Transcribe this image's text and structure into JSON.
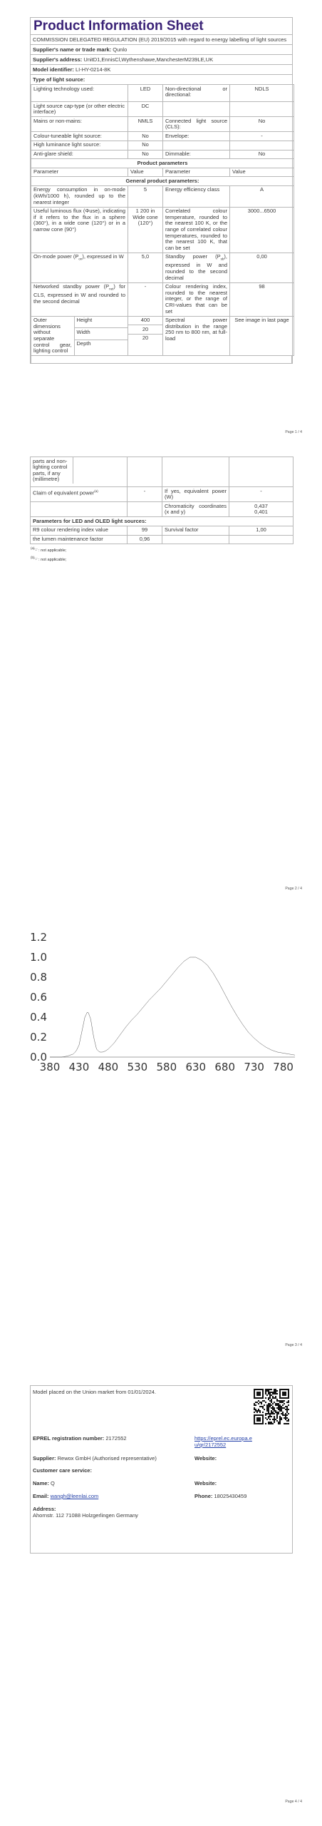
{
  "page1": {
    "title": "Product Information Sheet",
    "regulation": "COMMISSION DELEGATED REGULATION (EU) 2019/2015 with regard to energy labelling of light sources",
    "supplier_name_label": "Supplier's name or trade mark:",
    "supplier_name": "Qunlo",
    "supplier_address_label": "Supplier's address:",
    "supplier_address": "UnitD1,EnnisCl,Wythenshawe,ManchesterM239LE,UK",
    "model_label": "Model identifier:",
    "model": "LI-HY-0214-8K",
    "type_label": "Type of light source:",
    "tech_label": "Lighting technology used:",
    "tech_value": "LED",
    "nondir_label": "Non-directional or directional:",
    "nondir_value": "NDLS",
    "cap_label": "Light source cap-type (or other electric interface)",
    "cap_value": "DC",
    "mains_label": "Mains or non-mains:",
    "mains_value": "NMLS",
    "connected_label": "Connected light source (CLS):",
    "connected_value": "No",
    "colour_tune_label": "Colour-tuneable light source:",
    "colour_tune_value": "No",
    "envelope_label": "Envelope:",
    "envelope_value": "-",
    "high_lum_label": "High luminance light source:",
    "high_lum_value": "No",
    "anti_glare_label": "Anti-glare shield:",
    "anti_glare_value": "No",
    "dimmable_label": "Dimmable:",
    "dimmable_value": "No",
    "product_params": "Product parameters",
    "col_parameter": "Parameter",
    "col_value": "Value",
    "general_params": "General product parameters:",
    "energy_label": "Energy consumption in on-mode (kWh/1000 h), rounded up to the nearest integer",
    "energy_value": "5",
    "eclass_label": "Energy efficiency class",
    "eclass_value": "A",
    "flux_label": "Useful luminous flux (Φuse), indicating if it refers to the flux in a sphere (360°), in a wide cone (120°) or in a narrow cone (90°)",
    "flux_value": "1 200 in Wide cone (120°)",
    "cct_label": "Correlated colour temperature, rounded to the nearest 100 K, or the range of correlated colour temperatures, rounded to the nearest 100 K, that can be set",
    "cct_value": "3000...6500",
    "onmode_label_a": "On-mode power (P",
    "onmode_label_sub": "on",
    "onmode_label_b": "), expressed in W",
    "onmode_value": "5,0",
    "standby_label_a": "Standby power (P",
    "standby_label_sub": "sb",
    "standby_label_b": "), expressed in W and rounded to the second decimal",
    "standby_value": "0,00",
    "networked_label_a": "Networked standby power (P",
    "networked_label_sub": "net",
    "networked_label_b": ") for CLS, expressed in W and rounded to the second decimal",
    "networked_value": "-",
    "cri_label": "Colour rendering index, rounded to the nearest integer, or the range of CRI-values that can be set",
    "cri_value": "98",
    "outer_label": "Outer dimensions without separate control gear, lighting control",
    "height_label": "Height",
    "height_value": "400",
    "width_label": "Width",
    "width_value": "20",
    "depth_label": "Depth",
    "depth_value": "20",
    "spectral_label": "Spectral power distribution in the range 250 nm to 800 nm, at full-load",
    "spectral_value": "See image in last page",
    "page_number": "Page 1 / 4"
  },
  "page2": {
    "outer_cont": "parts and non-lighting control parts, if any (millimetre)",
    "equiv_label": "Claim of equivalent power",
    "equiv_sup": "(a)",
    "equiv_value": "-",
    "ifyes_label": "If yes, equivalent power (W)",
    "ifyes_value": "-",
    "chroma_label": "Chromaticity coordinates (x and y)",
    "chroma_x": "0,437",
    "chroma_y": "0,401",
    "led_params": "Parameters for LED and OLED light sources:",
    "r9_label": "R9 colour rendering index value",
    "r9_value": "99",
    "survival_label": "Survival factor",
    "survival_value": "1,00",
    "lumen_label": "the lumen maintenance factor",
    "lumen_value": "0,96",
    "footnote_a_sup": "(a)",
    "footnote_a": "'-' : not applicable;",
    "footnote_b_sup": "(b)",
    "footnote_b": "'-' : not applicable;",
    "page_number": "Page 2 / 4"
  },
  "chart_data": {
    "type": "area",
    "title": "",
    "xlabel": "",
    "ylabel": "",
    "xlim": [
      380,
      800
    ],
    "ylim": [
      0,
      1.2
    ],
    "xticks": [
      380,
      430,
      480,
      530,
      580,
      630,
      680,
      730,
      780
    ],
    "yticks": [
      0.0,
      0.2,
      0.4,
      0.6,
      0.8,
      1.0,
      1.2
    ],
    "ytick_labels": [
      "0.0",
      "0.2",
      "0.4",
      "0.6",
      "0.8",
      "1.0",
      "1.2"
    ],
    "grid": false,
    "fill": "spectral colours by wavelength",
    "series": [
      {
        "x": [
          380,
          390,
          400,
          410,
          420,
          425,
          430,
          435,
          440,
          445,
          450,
          455,
          460,
          465,
          470,
          475,
          480,
          490,
          500,
          510,
          520,
          530,
          540,
          550,
          560,
          570,
          580,
          590,
          600,
          610,
          620,
          630,
          640,
          650,
          660,
          670,
          680,
          690,
          700,
          710,
          720,
          730,
          740,
          750,
          760,
          770,
          780,
          790,
          800
        ],
        "y": [
          0.0,
          0.0,
          0.0,
          0.01,
          0.03,
          0.06,
          0.12,
          0.26,
          0.4,
          0.46,
          0.38,
          0.2,
          0.08,
          0.05,
          0.05,
          0.06,
          0.08,
          0.14,
          0.22,
          0.3,
          0.37,
          0.43,
          0.5,
          0.57,
          0.63,
          0.69,
          0.76,
          0.83,
          0.9,
          0.96,
          1.0,
          1.0,
          0.97,
          0.92,
          0.84,
          0.74,
          0.63,
          0.52,
          0.42,
          0.33,
          0.25,
          0.19,
          0.14,
          0.1,
          0.07,
          0.05,
          0.04,
          0.03,
          0.02
        ]
      }
    ],
    "page_number": "Page 3 / 4"
  },
  "page4": {
    "placed": "Model placed on the Union market from 01/01/2024.",
    "eprel_label": "EPREL registration number:",
    "eprel_value": "2172552",
    "eprel_link": "https://eprel.ec.europa.eu/qr/2172552",
    "supplier_label": "Supplier:",
    "supplier_value": "Rewox GmbH (Authorised representative)",
    "website_label": "Website:",
    "customer_label": "Customer care service:",
    "name_label": "Name:",
    "name_value": "Q",
    "website2_label": "Website:",
    "email_label": "Email:",
    "email_value": "wangh@leenlai.com",
    "phone_label": "Phone:",
    "phone_value": "18025430459",
    "address_label": "Address:",
    "address_value": "Ahornstr. 112 71088 Holzgerlingen Germany",
    "page_number": "Page 4 / 4"
  }
}
